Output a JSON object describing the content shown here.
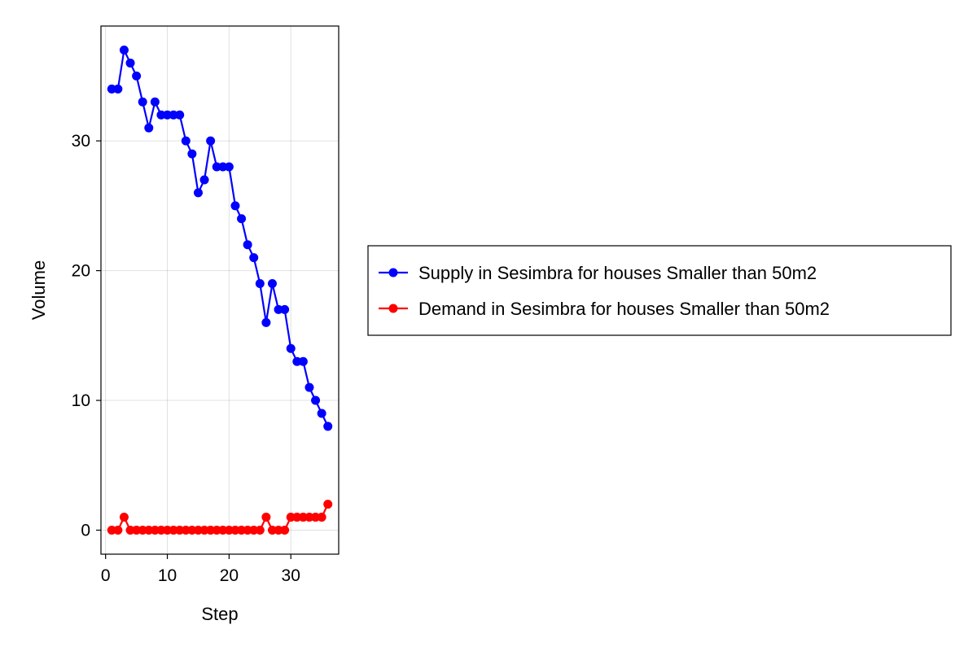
{
  "chart_data": {
    "type": "line",
    "xlabel": "Step",
    "ylabel": "Volume",
    "xlim": [
      -0.75,
      37.75
    ],
    "ylim": [
      -1.85,
      38.85
    ],
    "xticks": [
      0,
      10,
      20,
      30
    ],
    "yticks": [
      0,
      10,
      20,
      30
    ],
    "grid": true,
    "legend_position": "right",
    "x": [
      1,
      2,
      3,
      4,
      5,
      6,
      7,
      8,
      9,
      10,
      11,
      12,
      13,
      14,
      15,
      16,
      17,
      18,
      19,
      20,
      21,
      22,
      23,
      24,
      25,
      26,
      27,
      28,
      29,
      30,
      31,
      32,
      33,
      34,
      35,
      36
    ],
    "series": [
      {
        "name": "Supply in Sesimbra for houses Smaller than 50m2",
        "color": "#0000ff",
        "values": [
          34,
          34,
          37,
          36,
          35,
          33,
          31,
          33,
          32,
          32,
          32,
          32,
          30,
          29,
          26,
          27,
          30,
          28,
          28,
          28,
          25,
          24,
          22,
          21,
          19,
          16,
          19,
          17,
          17,
          14,
          13,
          13,
          11,
          10,
          9,
          8
        ]
      },
      {
        "name": "Demand in Sesimbra for houses Smaller than 50m2",
        "color": "#ff0000",
        "values": [
          0,
          0,
          1,
          0,
          0,
          0,
          0,
          0,
          0,
          0,
          0,
          0,
          0,
          0,
          0,
          0,
          0,
          0,
          0,
          0,
          0,
          0,
          0,
          0,
          0,
          1,
          0,
          0,
          0,
          1,
          1,
          1,
          1,
          1,
          1,
          2
        ]
      }
    ]
  }
}
